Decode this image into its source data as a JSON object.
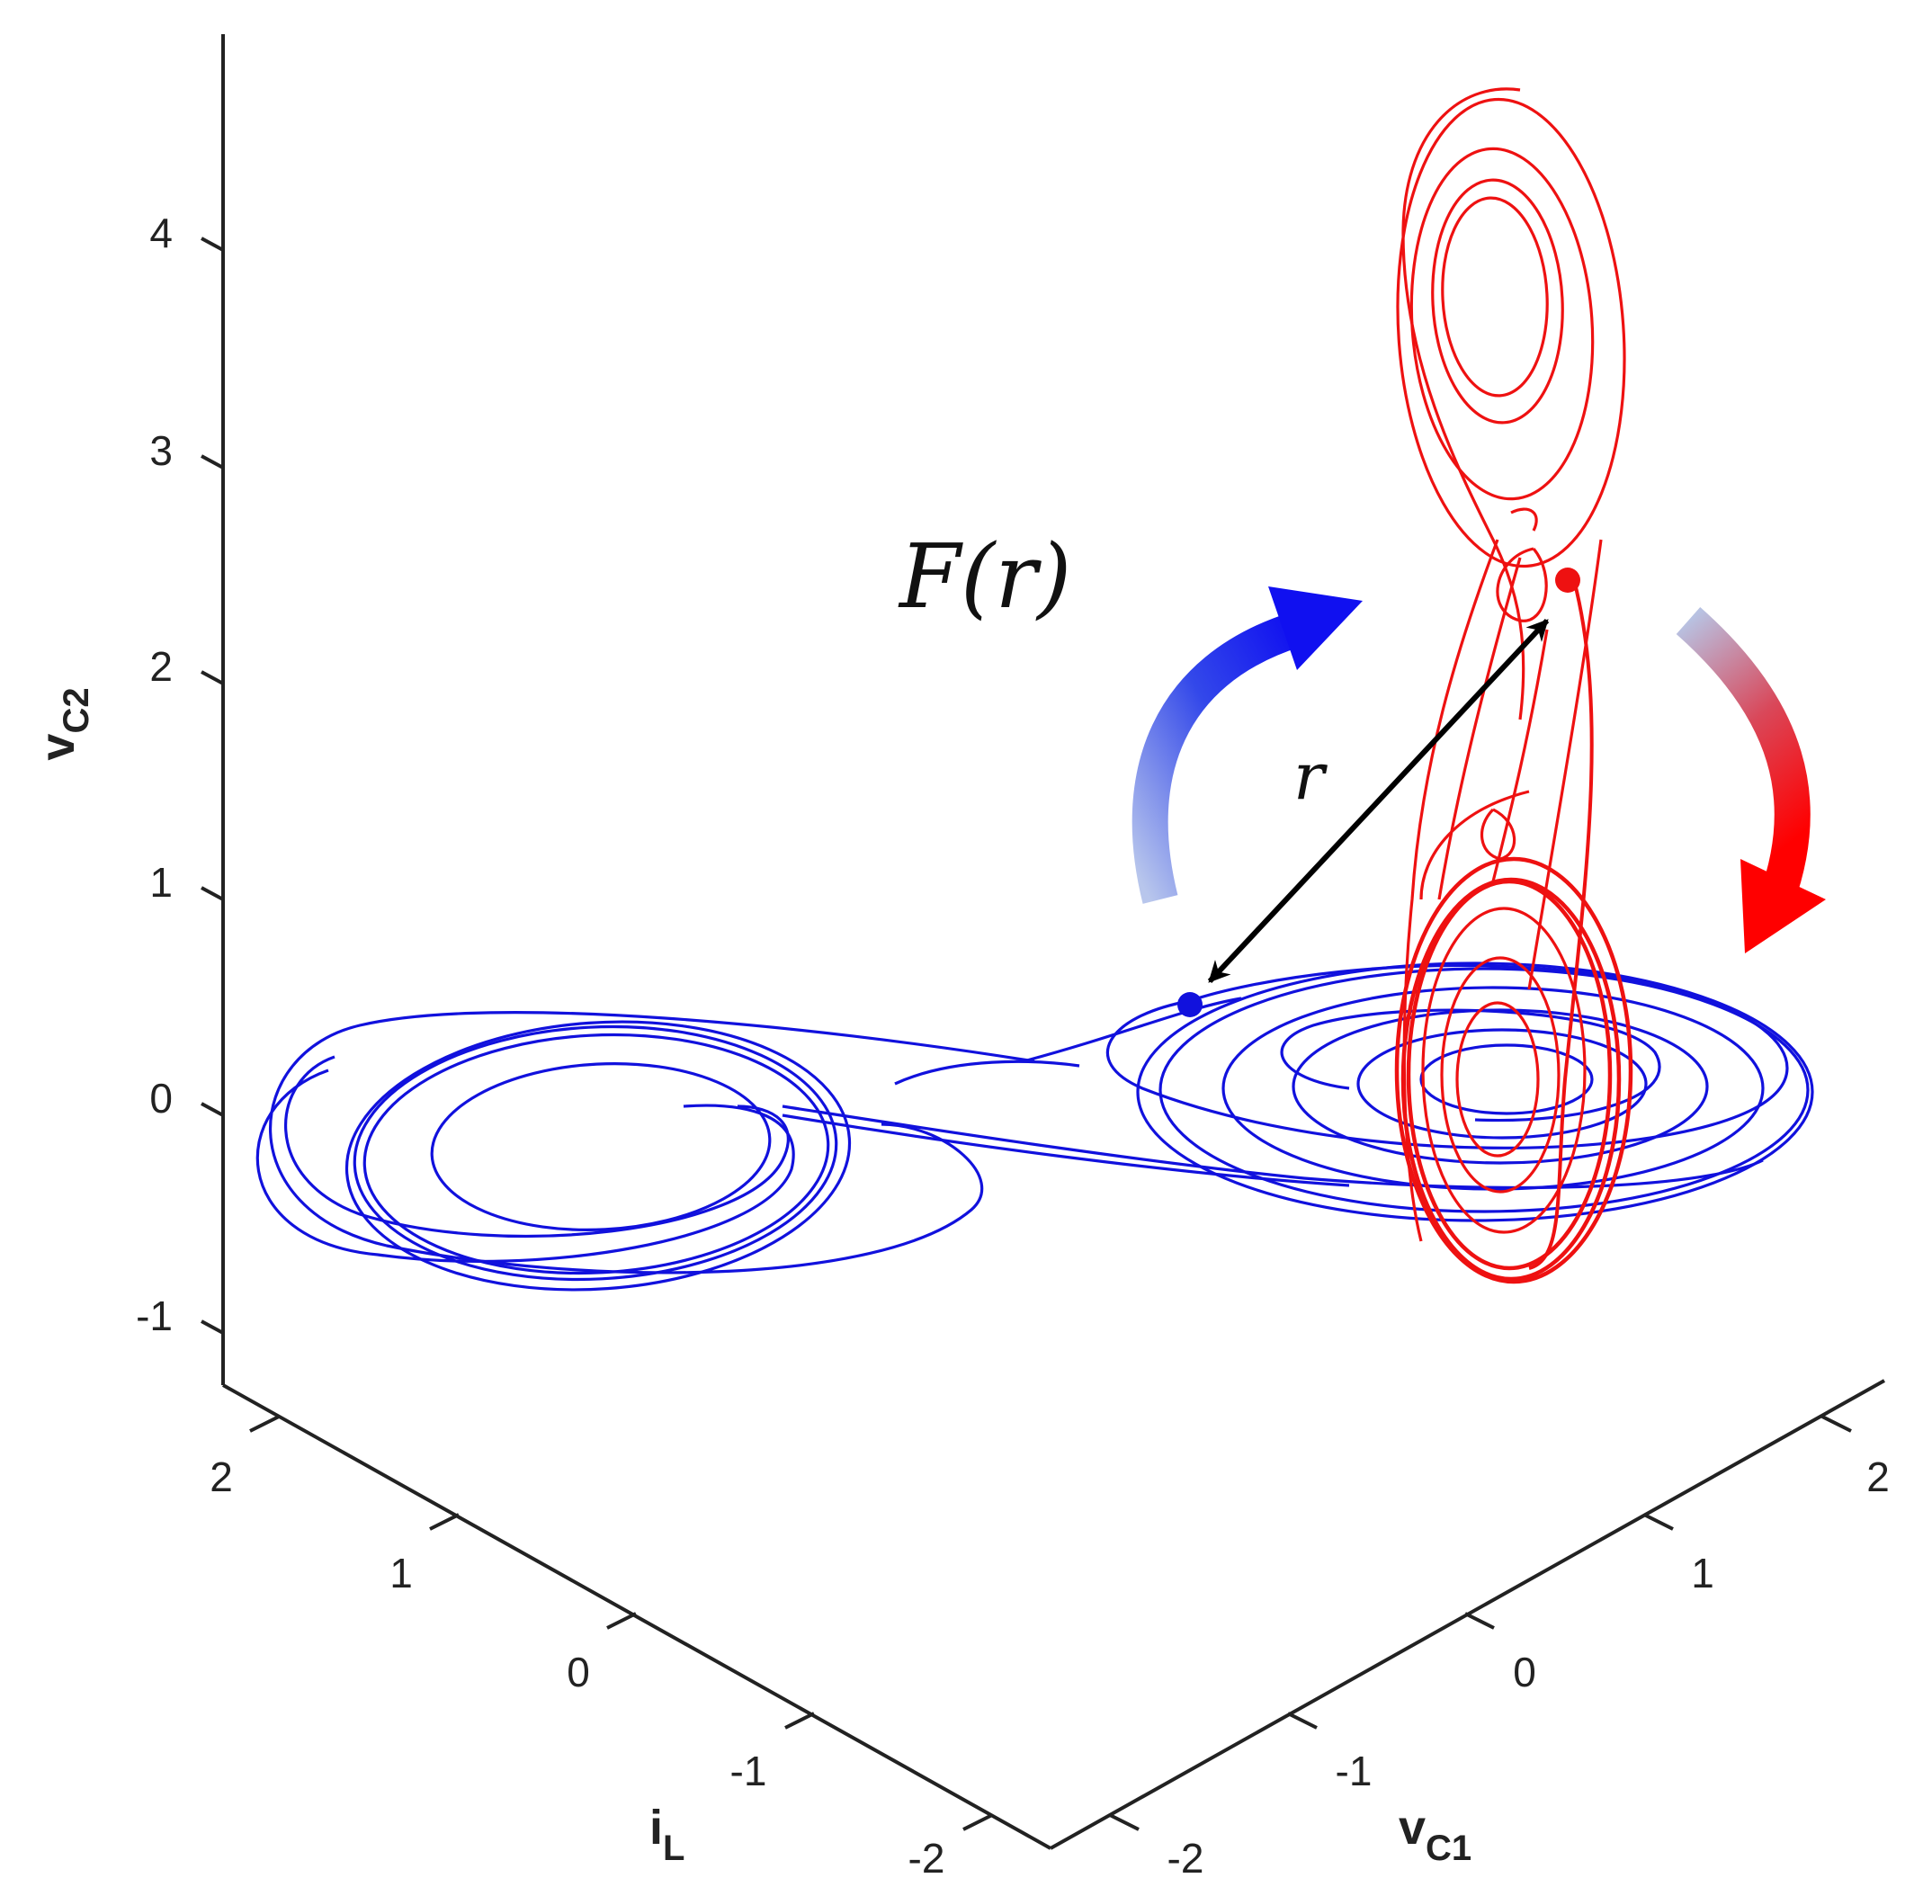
{
  "chart_data": {
    "type": "line",
    "projection": "3d",
    "axes": {
      "x": {
        "label_main": "i",
        "label_sub": "L",
        "ticks": [
          "2",
          "1",
          "0",
          "-1",
          "-2"
        ]
      },
      "y": {
        "label_main": "v",
        "label_sub": "C1",
        "ticks": [
          "-2",
          "-1",
          "0",
          "1",
          "2"
        ]
      },
      "z": {
        "label_main": "v",
        "label_sub": "C2",
        "ticks": [
          "4",
          "3",
          "2",
          "1",
          "0",
          "-1"
        ]
      }
    },
    "series": [
      {
        "color": "#1111dd",
        "marked_point": {
          "iL": -0.2,
          "vC1": 0.1,
          "vC2": 0.3
        }
      },
      {
        "color": "#ee1111",
        "marked_point": {
          "iL": 0.5,
          "vC1": 1.3,
          "vC2": 2.4
        }
      }
    ],
    "annotations": {
      "map_label": "F(r)",
      "distance_label": "r"
    },
    "colors": {
      "blue_curve": "#1111dd",
      "red_curve": "#ee1111",
      "distance_arrow": "#000000",
      "axis": "#222222"
    }
  }
}
